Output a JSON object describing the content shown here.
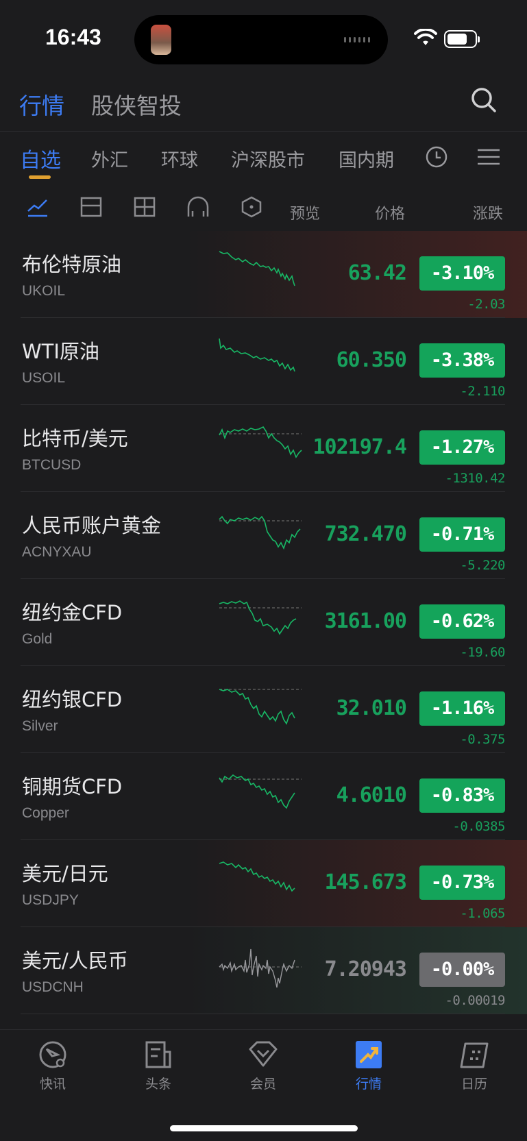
{
  "status": {
    "time": "16:43"
  },
  "header": {
    "tabs": [
      {
        "label": "行情"
      },
      {
        "label": "股侠智投"
      }
    ]
  },
  "categories": [
    {
      "label": "自选"
    },
    {
      "label": "外汇"
    },
    {
      "label": "环球"
    },
    {
      "label": "沪深股市"
    },
    {
      "label": "国内期"
    }
  ],
  "columns": {
    "preview": "预览",
    "price": "价格",
    "change": "涨跌"
  },
  "rows": [
    {
      "name": "布伦特原油",
      "code": "UKOIL",
      "price": "63.42",
      "pct": "-3.10%",
      "change": "-2.03"
    },
    {
      "name": "WTI原油",
      "code": "USOIL",
      "price": "60.350",
      "pct": "-3.38%",
      "change": "-2.110"
    },
    {
      "name": "比特币/美元",
      "code": "BTCUSD",
      "price": "102197.4",
      "pct": "-1.27%",
      "change": "-1310.42"
    },
    {
      "name": "人民币账户黄金",
      "code": "ACNYXAU",
      "price": "732.470",
      "pct": "-0.71%",
      "change": "-5.220"
    },
    {
      "name": "纽约金CFD",
      "code": "Gold",
      "price": "3161.00",
      "pct": "-0.62%",
      "change": "-19.60"
    },
    {
      "name": "纽约银CFD",
      "code": "Silver",
      "price": "32.010",
      "pct": "-1.16%",
      "change": "-0.375"
    },
    {
      "name": "铜期货CFD",
      "code": "Copper",
      "price": "4.6010",
      "pct": "-0.83%",
      "change": "-0.0385"
    },
    {
      "name": "美元/日元",
      "code": "USDJPY",
      "price": "145.673",
      "pct": "-0.73%",
      "change": "-1.065"
    },
    {
      "name": "美元/人民币",
      "code": "USDCNH",
      "price": "7.20943",
      "pct": "-0.00%",
      "change": "-0.00019"
    }
  ],
  "tabbar": [
    {
      "label": "快讯"
    },
    {
      "label": "头条"
    },
    {
      "label": "会员"
    },
    {
      "label": "行情"
    },
    {
      "label": "日历"
    }
  ],
  "colors": {
    "accent": "#3d7cf4",
    "down": "#14a45a",
    "flat": "#6b6b6e",
    "underline": "#e0a030"
  }
}
